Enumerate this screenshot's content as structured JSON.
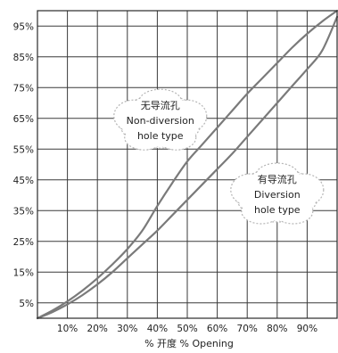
{
  "chart_data": {
    "type": "line",
    "title": "",
    "xlabel": "% 开度  % Opening",
    "ylabel": "",
    "xlim": [
      0,
      100
    ],
    "ylim": [
      0,
      100
    ],
    "grid": true,
    "x_tick_labels": [
      "10%",
      "20%",
      "30%",
      "40%",
      "50%",
      "60%",
      "70%",
      "80%",
      "90%"
    ],
    "y_tick_labels": [
      "5%",
      "15%",
      "25%",
      "35%",
      "45%",
      "55%",
      "65%",
      "75%",
      "85%",
      "95%"
    ],
    "series": [
      {
        "name": "无导流孔 Non-diversion hole type",
        "x": [
          0,
          5,
          10,
          15,
          20,
          25,
          30,
          35,
          40,
          45,
          50,
          55,
          60,
          65,
          70,
          75,
          80,
          85,
          90,
          95,
          100
        ],
        "values": [
          0,
          2.5,
          5.5,
          9,
          13,
          17.5,
          22.5,
          28.5,
          36.5,
          44,
          51,
          56.5,
          62,
          67.5,
          73,
          78,
          83,
          88,
          92.5,
          96.5,
          100
        ]
      },
      {
        "name": "有导流孔 Diversion hole type",
        "x": [
          0,
          5,
          10,
          15,
          20,
          25,
          30,
          35,
          40,
          45,
          50,
          55,
          60,
          65,
          70,
          75,
          80,
          85,
          90,
          95,
          100
        ],
        "values": [
          0,
          2,
          4.5,
          7.5,
          11,
          15,
          19.5,
          24,
          28.5,
          33.5,
          38.5,
          43.5,
          48.5,
          53.5,
          59,
          64.5,
          70,
          75.5,
          81,
          87,
          98
        ]
      }
    ],
    "annotations": [
      {
        "lines": [
          "无导流孔",
          "Non-diversion",
          "hole type"
        ],
        "x": 41,
        "y": 64
      },
      {
        "lines": [
          "有导流孔",
          "Diversion",
          "hole type"
        ],
        "x": 80,
        "y": 40
      }
    ]
  }
}
